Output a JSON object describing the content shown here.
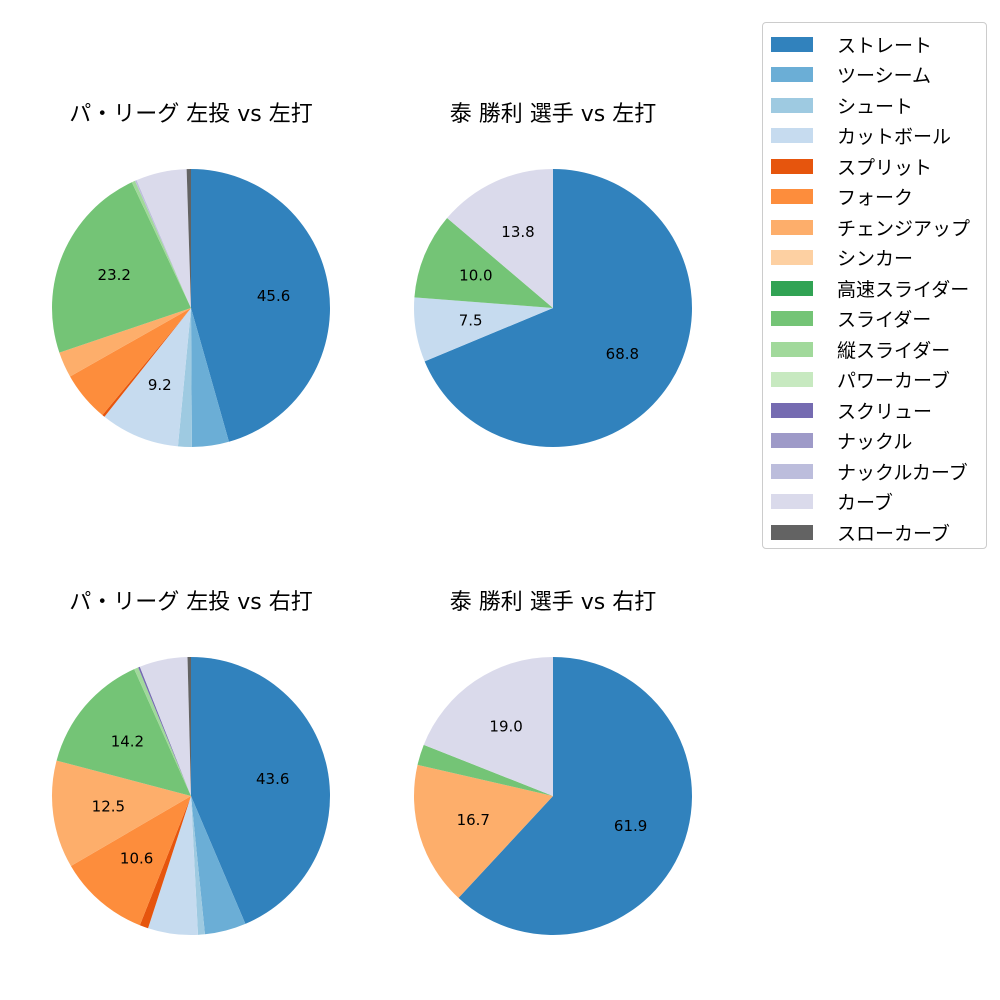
{
  "legend": {
    "items": [
      {
        "label": "ストレート",
        "color": "#3182bd"
      },
      {
        "label": "ツーシーム",
        "color": "#6baed6"
      },
      {
        "label": "シュート",
        "color": "#9ecae1"
      },
      {
        "label": "カットボール",
        "color": "#c6dbef"
      },
      {
        "label": "スプリット",
        "color": "#e6550d"
      },
      {
        "label": "フォーク",
        "color": "#fd8d3c"
      },
      {
        "label": "チェンジアップ",
        "color": "#fdae6b"
      },
      {
        "label": "シンカー",
        "color": "#fdd0a2"
      },
      {
        "label": "高速スライダー",
        "color": "#31a354"
      },
      {
        "label": "スライダー",
        "color": "#74c476"
      },
      {
        "label": "縦スライダー",
        "color": "#a1d99b"
      },
      {
        "label": "パワーカーブ",
        "color": "#c7e9c0"
      },
      {
        "label": "スクリュー",
        "color": "#756bb1"
      },
      {
        "label": "ナックル",
        "color": "#9e9ac8"
      },
      {
        "label": "ナックルカーブ",
        "color": "#bcbddc"
      },
      {
        "label": "カーブ",
        "color": "#dadaeb"
      },
      {
        "label": "スローカーブ",
        "color": "#636363"
      }
    ]
  },
  "chart_data": [
    {
      "type": "pie",
      "title": "パ・リーグ 左投 vs 左打",
      "categories": [
        "ストレート",
        "ツーシーム",
        "シュート",
        "カットボール",
        "スプリット",
        "フォーク",
        "チェンジアップ",
        "スライダー",
        "縦スライダー",
        "ナックルカーブ",
        "カーブ",
        "スローカーブ"
      ],
      "values": [
        45.6,
        4.3,
        1.6,
        9.2,
        0.3,
        5.8,
        3.0,
        23.2,
        0.4,
        0.2,
        5.9,
        0.5
      ],
      "labels_shown": [
        "45.6",
        "",
        "",
        "9.2",
        "",
        "",
        "",
        "23.2",
        "",
        "",
        "",
        ""
      ],
      "startangle": 90,
      "direction": "clockwise"
    },
    {
      "type": "pie",
      "title": "泰 勝利 選手 vs 左打",
      "categories": [
        "ストレート",
        "カットボール",
        "スライダー",
        "カーブ"
      ],
      "values": [
        68.8,
        7.5,
        10.0,
        13.8
      ],
      "labels_shown": [
        "68.8",
        "7.5",
        "10.0",
        "13.8"
      ],
      "startangle": 90,
      "direction": "clockwise"
    },
    {
      "type": "pie",
      "title": "パ・リーグ 左投 vs 右打",
      "categories": [
        "ストレート",
        "ツーシーム",
        "シュート",
        "カットボール",
        "スプリット",
        "フォーク",
        "チェンジアップ",
        "スライダー",
        "縦スライダー",
        "スクリュー",
        "カーブ",
        "スローカーブ"
      ],
      "values": [
        43.6,
        4.8,
        0.8,
        5.8,
        1.0,
        10.6,
        12.5,
        14.2,
        0.5,
        0.2,
        5.6,
        0.4
      ],
      "labels_shown": [
        "43.6",
        "",
        "",
        "",
        "",
        "10.6",
        "12.5",
        "14.2",
        "",
        "",
        "",
        ""
      ],
      "startangle": 90,
      "direction": "clockwise"
    },
    {
      "type": "pie",
      "title": "泰 勝利 選手 vs 右打",
      "categories": [
        "ストレート",
        "チェンジアップ",
        "スライダー",
        "カーブ"
      ],
      "values": [
        61.9,
        16.7,
        2.4,
        19.0
      ],
      "labels_shown": [
        "61.9",
        "16.7",
        "",
        "19.0"
      ],
      "startangle": 90,
      "direction": "clockwise"
    }
  ]
}
